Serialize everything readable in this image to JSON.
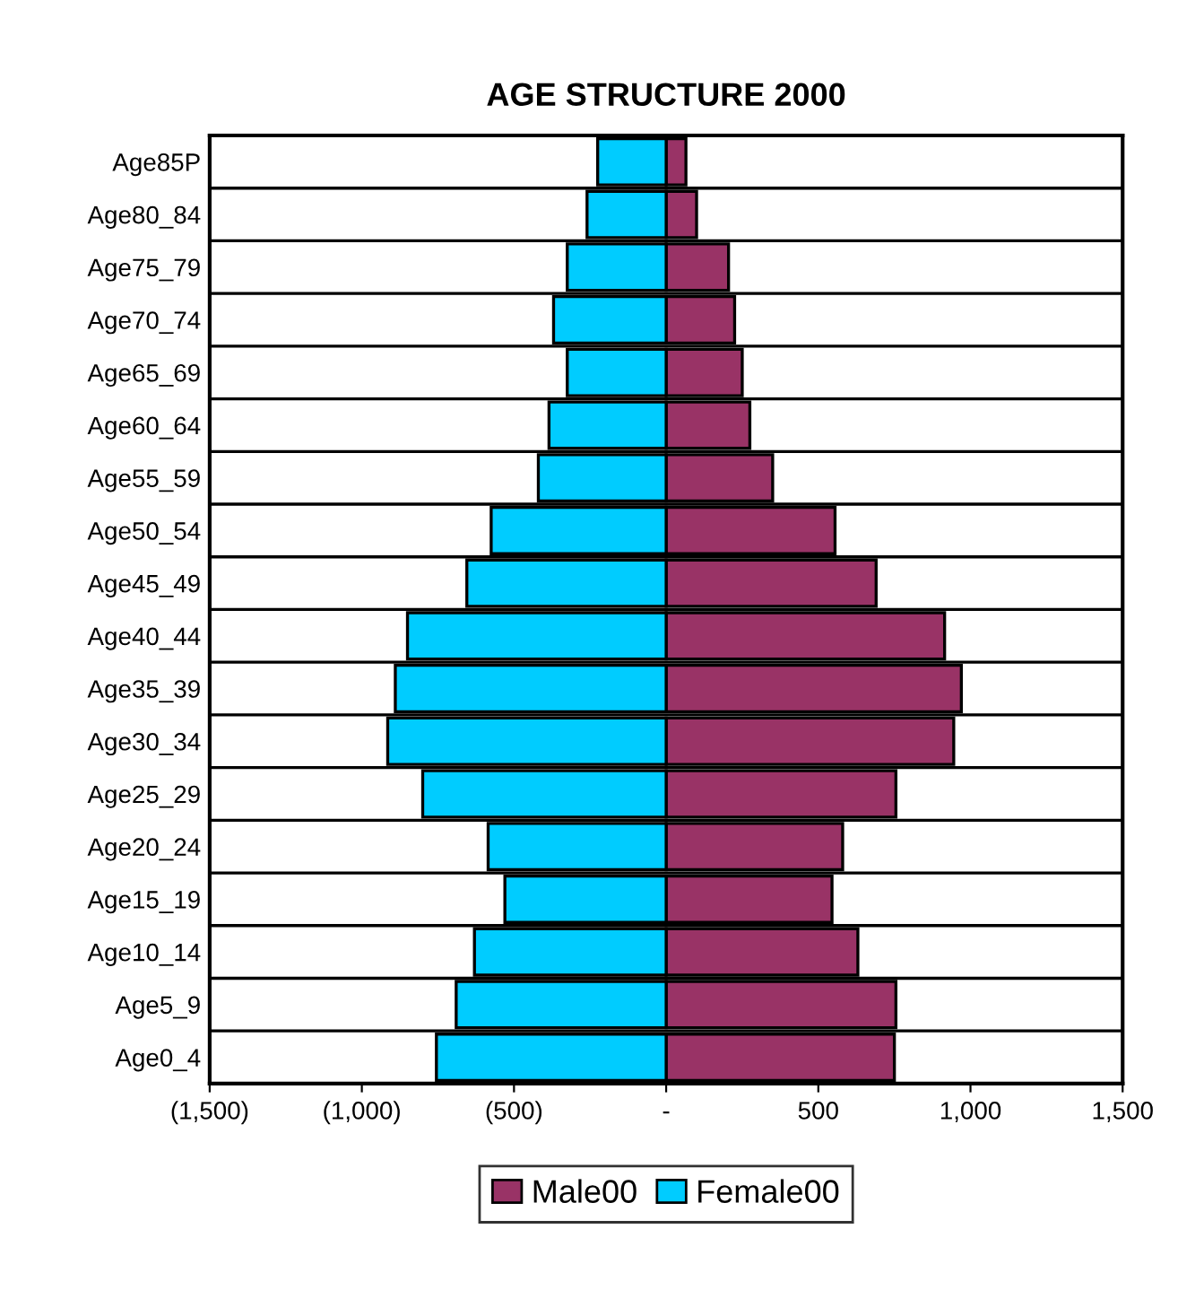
{
  "chart_data": {
    "type": "bar",
    "orientation": "horizontal",
    "title": "AGE STRUCTURE 2000",
    "categories": [
      "Age85P",
      "Age80_84",
      "Age75_79",
      "Age70_74",
      "Age65_69",
      "Age60_64",
      "Age55_59",
      "Age50_54",
      "Age45_49",
      "Age40_44",
      "Age35_39",
      "Age30_34",
      "Age25_29",
      "Age20_24",
      "Age15_19",
      "Age10_14",
      "Age5_9",
      "Age0_4"
    ],
    "series": [
      {
        "name": "Male00",
        "color": "#993366",
        "values": [
          65,
          100,
          205,
          225,
          250,
          275,
          350,
          555,
          690,
          915,
          970,
          945,
          755,
          580,
          545,
          630,
          755,
          750
        ]
      },
      {
        "name": "Female00",
        "color": "#00ccff",
        "values": [
          -225,
          -260,
          -325,
          -370,
          -325,
          -385,
          -420,
          -575,
          -655,
          -850,
          -890,
          -915,
          -800,
          -585,
          -530,
          -630,
          -690,
          -755
        ]
      }
    ],
    "xlim": [
      -1500,
      1500
    ],
    "xticks": [
      {
        "value": -1500,
        "label": "(1,500)"
      },
      {
        "value": -1000,
        "label": "(1,000)"
      },
      {
        "value": -500,
        "label": "(500)"
      },
      {
        "value": 0,
        "label": "-"
      },
      500,
      {
        "value": 1000,
        "label": "1,000"
      },
      {
        "value": 1500,
        "label": "1,500"
      }
    ],
    "grid": "y",
    "legend": "bottom",
    "stacked": true
  }
}
